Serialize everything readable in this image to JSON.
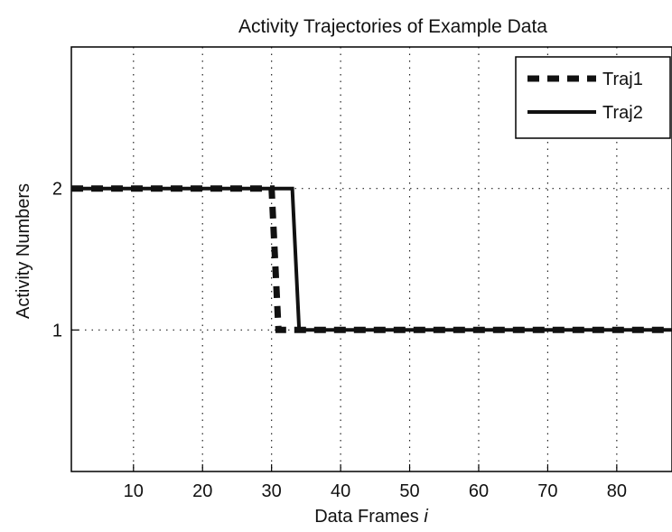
{
  "chart_data": {
    "type": "line",
    "title": "Activity Trajectories of Example Data",
    "xlabel": "Data Frames",
    "xlabel_italic_suffix": "i",
    "ylabel": "Activity Numbers",
    "xlim": [
      1,
      88
    ],
    "ylim": [
      0,
      3
    ],
    "xticks": [
      10,
      20,
      30,
      40,
      50,
      60,
      70,
      80
    ],
    "yticks": [
      1,
      2
    ],
    "grid": true,
    "legend_position": "top-right",
    "series": [
      {
        "name": "Traj1",
        "style": "dashed",
        "x": [
          1,
          30,
          31,
          32,
          88
        ],
        "y": [
          2,
          2,
          1,
          1,
          1
        ]
      },
      {
        "name": "Traj2",
        "style": "solid",
        "x": [
          1,
          33,
          34,
          88
        ],
        "y": [
          2,
          2,
          1,
          1
        ]
      }
    ]
  }
}
